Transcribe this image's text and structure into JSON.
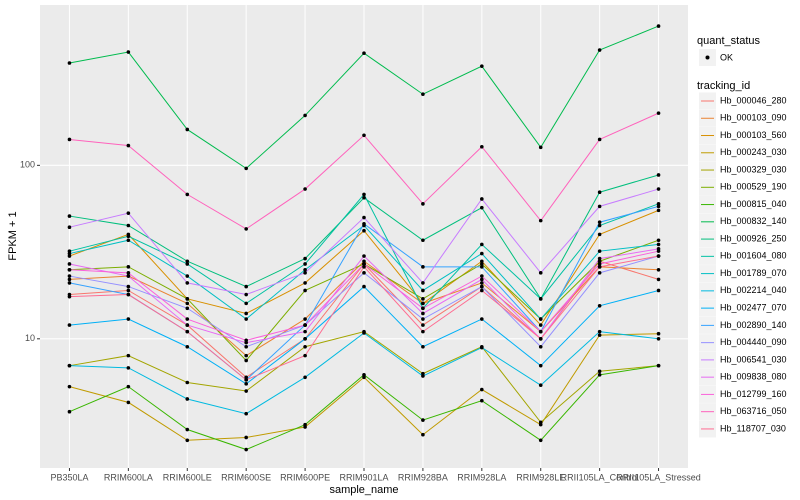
{
  "chart_data": {
    "type": "line",
    "log": true,
    "grid": true,
    "x_label": "sample_name",
    "y_label": "FPKM + 1",
    "shape_legend_title": "quant_status",
    "shape_legend_label": "OK",
    "legend_title": "tracking_id",
    "categories": [
      "PB350LA",
      "RRIM600LA",
      "RRIM600LE",
      "RRIM600SE",
      "RRIM600PE",
      "RRIM901LA",
      "RRIM928BA",
      "RRIM928LA",
      "RRIM928LE",
      "RRII105LA_Control",
      "RRII105LA_Stressed"
    ],
    "ylim": [
      1.8,
      840
    ],
    "yticks": [
      10,
      100
    ],
    "series": [
      {
        "name": "Hb_000046_280",
        "color": "#F8766D",
        "values": [
          18,
          19,
          12,
          6,
          10,
          27,
          12,
          20,
          10,
          28,
          22
        ]
      },
      {
        "name": "Hb_000103_090",
        "color": "#EA8331",
        "values": [
          22,
          23,
          16,
          8,
          13,
          28,
          16,
          21,
          11,
          26,
          25
        ]
      },
      {
        "name": "Hb_000103_560",
        "color": "#D89000",
        "values": [
          30,
          40,
          17,
          14,
          21,
          42,
          16,
          28,
          12,
          40,
          55
        ]
      },
      {
        "name": "Hb_000243_030",
        "color": "#C09B00",
        "values": [
          5.3,
          4.3,
          2.6,
          2.7,
          3.1,
          6,
          2.8,
          5.1,
          3.2,
          10.5,
          10.7
        ]
      },
      {
        "name": "Hb_000329_030",
        "color": "#A3A500",
        "values": [
          7,
          8,
          5.6,
          5,
          9,
          11,
          6.3,
          9,
          3.3,
          6.5,
          7
        ]
      },
      {
        "name": "Hb_000529_190",
        "color": "#7CAE00",
        "values": [
          25,
          26,
          17,
          7.5,
          19,
          27,
          17,
          27,
          13,
          28,
          37
        ]
      },
      {
        "name": "Hb_000815_040",
        "color": "#39B600",
        "values": [
          3.8,
          5.3,
          3,
          2.3,
          3.2,
          6.2,
          3.4,
          4.4,
          2.6,
          6.2,
          7
        ]
      },
      {
        "name": "Hb_000832_140",
        "color": "#00BB4E",
        "values": [
          389,
          450,
          161,
          96,
          194,
          443,
          257,
          373,
          127,
          462,
          635
        ]
      },
      {
        "name": "Hb_000926_250",
        "color": "#00BF7D",
        "values": [
          51,
          45,
          28,
          20,
          29,
          65,
          37,
          57,
          17,
          70,
          88
        ]
      },
      {
        "name": "Hb_001604_080",
        "color": "#00C1A3",
        "values": [
          32,
          39,
          27,
          16,
          27,
          68,
          15,
          35,
          17,
          45,
          60
        ]
      },
      {
        "name": "Hb_001789_070",
        "color": "#00BFC4",
        "values": [
          31,
          37,
          23,
          13,
          25,
          45,
          19,
          31,
          13,
          32,
          35
        ]
      },
      {
        "name": "Hb_002214_040",
        "color": "#00BAE0",
        "values": [
          7,
          6.8,
          4.5,
          3.7,
          6,
          10.8,
          6.1,
          8.9,
          5.4,
          11,
          10
        ]
      },
      {
        "name": "Hb_002477_070",
        "color": "#00B0F6",
        "values": [
          12,
          13,
          9,
          5.5,
          10,
          20,
          9,
          13,
          7,
          15.5,
          19
        ]
      },
      {
        "name": "Hb_002890_140",
        "color": "#35A2FF",
        "values": [
          21,
          18,
          11,
          5.8,
          12,
          46,
          26,
          26,
          11,
          47,
          58
        ]
      },
      {
        "name": "Hb_004440_090",
        "color": "#9590FF",
        "values": [
          23,
          20,
          15,
          9,
          12,
          24,
          13,
          20,
          9,
          24,
          30
        ]
      },
      {
        "name": "Hb_006541_030",
        "color": "#C77CFF",
        "values": [
          44,
          53,
          21,
          18,
          24,
          50,
          21,
          64,
          24,
          58,
          73
        ]
      },
      {
        "name": "Hb_009838_080",
        "color": "#E76BF3",
        "values": [
          27,
          23,
          12,
          9.5,
          11,
          30,
          14,
          22,
          10,
          29,
          33
        ]
      },
      {
        "name": "Hb_012799_160",
        "color": "#FA62DB",
        "values": [
          25,
          24,
          13,
          9.8,
          12,
          27,
          15,
          23,
          11,
          27,
          32
        ]
      },
      {
        "name": "Hb_063716_050",
        "color": "#FF62BC",
        "values": [
          141,
          130,
          68,
          43,
          73,
          149,
          60,
          128,
          48,
          141,
          200
        ]
      },
      {
        "name": "Hb_118707_030",
        "color": "#FF6C91",
        "values": [
          17.5,
          18,
          11,
          5.8,
          8,
          26,
          11,
          19,
          10,
          26,
          30
        ]
      }
    ]
  }
}
